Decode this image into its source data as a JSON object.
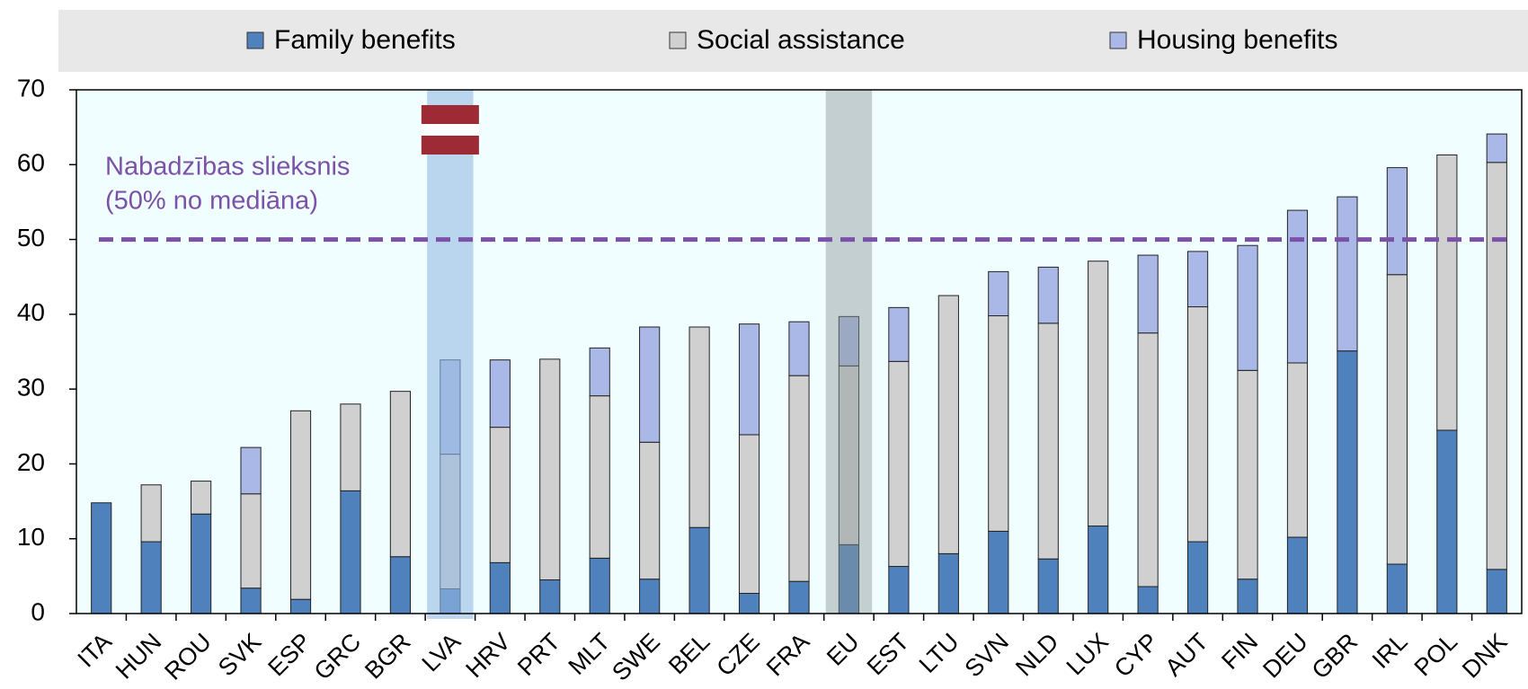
{
  "chart_data": {
    "type": "stacked-bar",
    "categories": [
      "ITA",
      "HUN",
      "ROU",
      "SVK",
      "ESP",
      "GRC",
      "BGR",
      "LVA",
      "HRV",
      "PRT",
      "MLT",
      "SWE",
      "BEL",
      "CZE",
      "FRA",
      "EU",
      "EST",
      "LTU",
      "SVN",
      "NLD",
      "LUX",
      "CYP",
      "AUT",
      "FIN",
      "DEU",
      "GBR",
      "IRL",
      "POL",
      "DNK"
    ],
    "series": [
      {
        "name": "Family benefits",
        "color": "#4f81bd",
        "values": [
          14.8,
          9.6,
          13.3,
          3.4,
          1.9,
          16.4,
          7.6,
          3.3,
          6.8,
          4.5,
          7.4,
          4.6,
          11.5,
          2.7,
          4.3,
          9.2,
          6.3,
          8,
          11,
          7.3,
          11.7,
          3.6,
          9.6,
          4.6,
          10.2,
          35.1,
          6.6,
          24.5,
          5.9
        ]
      },
      {
        "name": "Social assistance",
        "color": "#d0d0d0",
        "values": [
          0,
          7.6,
          4.4,
          12.6,
          25.2,
          11.6,
          22.1,
          18,
          18.1,
          29.5,
          21.7,
          18.3,
          26.8,
          21.2,
          27.5,
          23.9,
          27.4,
          34.5,
          28.8,
          31.5,
          35.4,
          33.9,
          31.4,
          27.9,
          23.3,
          0,
          38.7,
          36.8,
          54.4
        ]
      },
      {
        "name": "Housing benefits",
        "color": "#a9b8e6",
        "values": [
          0,
          0,
          0,
          6.2,
          0,
          0,
          0,
          12.6,
          9,
          0,
          6.4,
          15.4,
          0,
          14.8,
          7.2,
          6.6,
          7.2,
          0,
          5.9,
          7.5,
          0,
          10.4,
          7.4,
          16.7,
          20.4,
          20.6,
          14.3,
          0,
          3.8
        ]
      }
    ],
    "ylim": [
      0,
      70
    ],
    "yticks": [
      0,
      10,
      20,
      30,
      40,
      50,
      60,
      70
    ],
    "threshold": {
      "value": 50,
      "label": [
        "Nabadzības slieksnis",
        "(50% no mediāna)"
      ],
      "color": "#7b52a8"
    },
    "highlight": [
      {
        "category": "LVA",
        "color": "rgba(150,186,226,0.6)"
      },
      {
        "category": "EU",
        "color": "rgba(140,150,150,0.45)"
      }
    ]
  }
}
